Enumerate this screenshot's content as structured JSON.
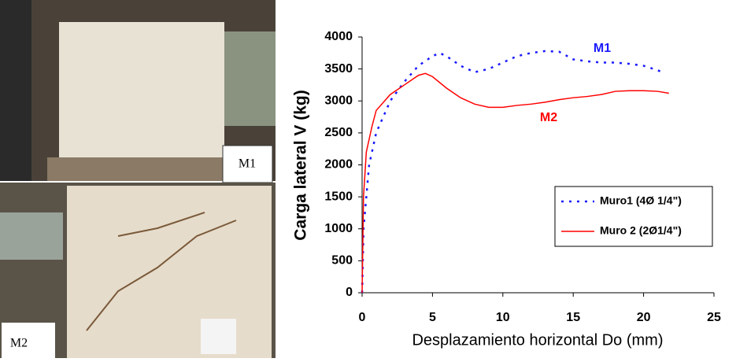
{
  "photos": [
    {
      "label": "M1"
    },
    {
      "label": "M2"
    }
  ],
  "chart_data": {
    "type": "line",
    "xlabel": "Desplazamiento horizontal Do (mm)",
    "ylabel": "Carga lateral  V (kg)",
    "xlim": [
      0,
      25
    ],
    "xticks": [
      0,
      5,
      10,
      15,
      20,
      25
    ],
    "ylim": [
      0,
      4000
    ],
    "yticks": [
      0,
      500,
      1000,
      1500,
      2000,
      2500,
      3000,
      3500,
      4000
    ],
    "legend": "right",
    "annotations": [
      {
        "text": "M1",
        "color": "#1a1aff"
      },
      {
        "text": "M2",
        "color": "#ff0000"
      }
    ],
    "series": [
      {
        "name": "Muro1 (4Ø 1/4\")",
        "color": "#1a1aff",
        "dash": true,
        "x": [
          0,
          0.1,
          0.3,
          0.5,
          1,
          2,
          3,
          4,
          5,
          5.5,
          6,
          7,
          8,
          9,
          10,
          11,
          12,
          13,
          14,
          15,
          16,
          17,
          18,
          19,
          20,
          21,
          21.3
        ],
        "values": [
          0,
          1000,
          1500,
          2000,
          2500,
          3000,
          3300,
          3550,
          3700,
          3750,
          3700,
          3550,
          3450,
          3500,
          3600,
          3700,
          3750,
          3780,
          3770,
          3650,
          3620,
          3600,
          3600,
          3580,
          3550,
          3480,
          3450
        ]
      },
      {
        "name": "Muro 2 (2Ø1/4\")",
        "color": "#ff0000",
        "dash": false,
        "x": [
          0,
          0.1,
          0.3,
          0.7,
          1,
          2,
          3,
          4,
          4.5,
          5,
          6,
          7,
          8,
          9,
          10,
          11,
          12,
          13,
          14,
          15,
          16,
          17,
          18,
          19,
          20,
          21,
          21.8
        ],
        "values": [
          0,
          1500,
          2200,
          2600,
          2850,
          3100,
          3250,
          3400,
          3430,
          3380,
          3200,
          3050,
          2950,
          2900,
          2900,
          2930,
          2950,
          2980,
          3020,
          3050,
          3070,
          3100,
          3150,
          3160,
          3160,
          3150,
          3120
        ]
      }
    ]
  }
}
